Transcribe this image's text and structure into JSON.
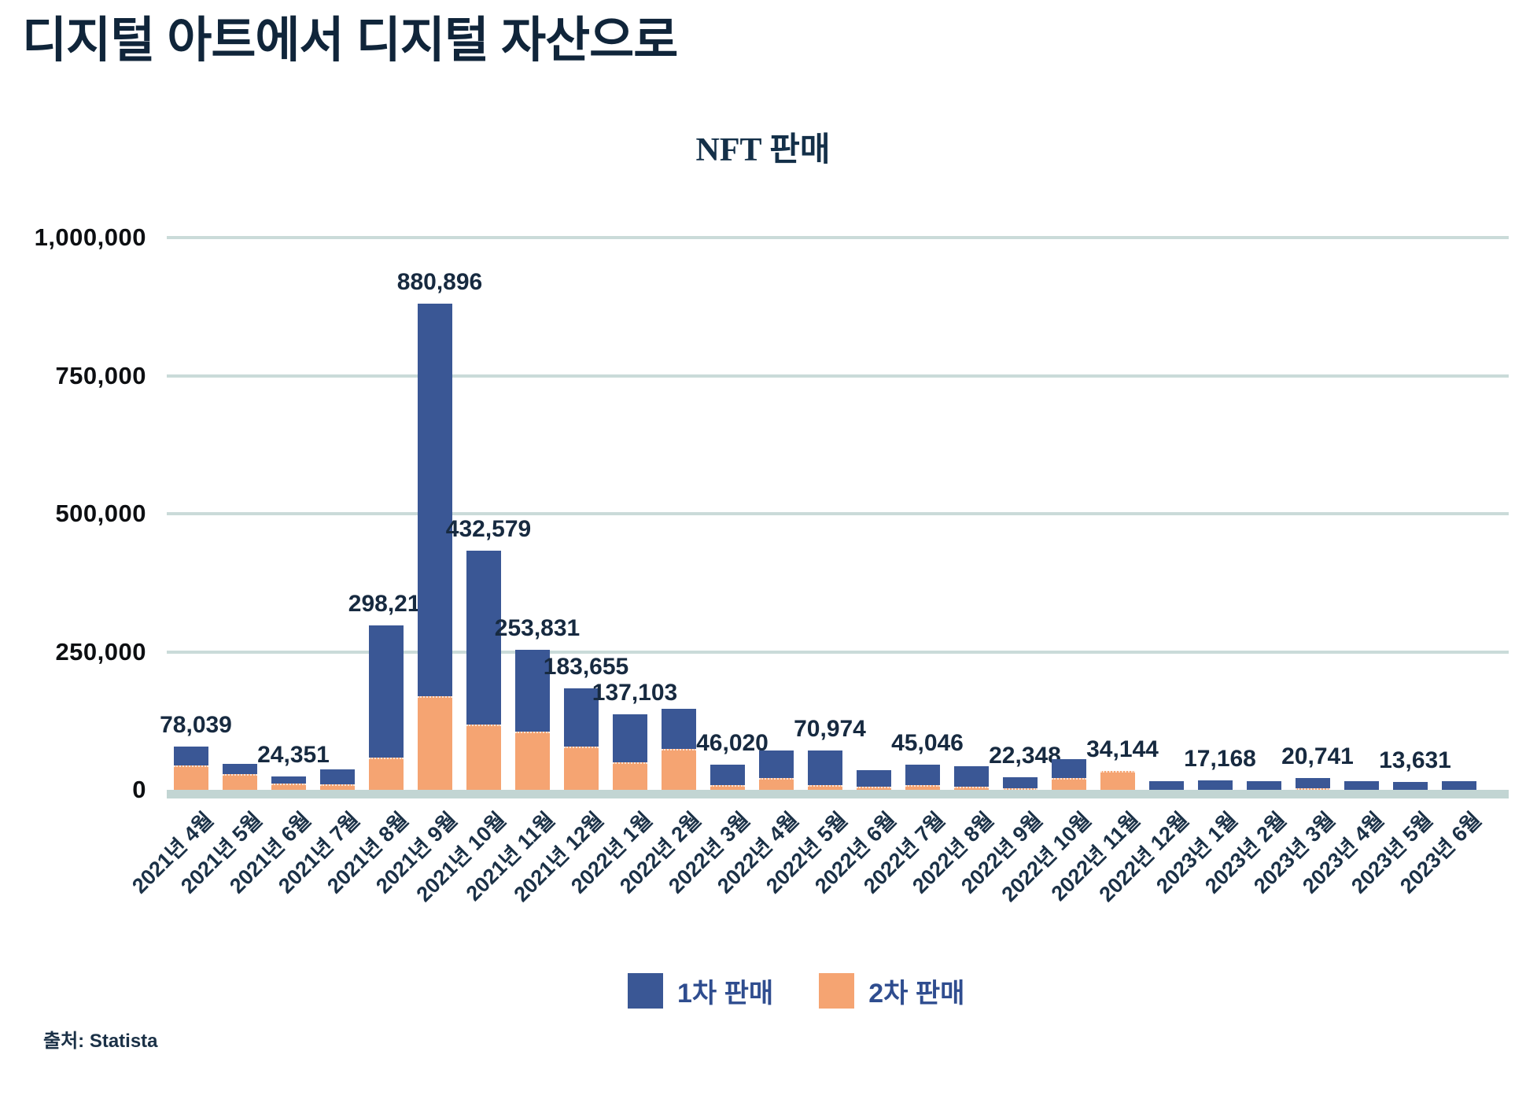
{
  "page_title": "디지털 아트에서 디지털 자산으로",
  "source": "출처: Statista",
  "colors": {
    "primary_blue": "#3A5795",
    "secondary_orange": "#F5A472",
    "gridline": "#CADBD9",
    "zero_band": "#C2D5D3",
    "value_label": "#172A40",
    "axis_label": "#1B3147",
    "legend_text": "#2F4D8F",
    "title_text": "#10253A"
  },
  "chart_data": {
    "type": "bar",
    "stacked": true,
    "title": "NFT 판매",
    "grid": true,
    "legend_position": "bottom",
    "ylim": [
      0,
      1000000
    ],
    "y_ticks": [
      "1,000,000",
      "750,000",
      "500,000",
      "250,000",
      "0"
    ],
    "categories": [
      "2021년 4월",
      "2021년 5월",
      "2021년 6월",
      "2021년 7월",
      "2021년 8월",
      "2021년 9월",
      "2021년 10월",
      "2021년 11월",
      "2021년 12월",
      "2022년 1월",
      "2022년 2월",
      "2022년 3월",
      "2022년 4월",
      "2022년 5월",
      "2022년 6월",
      "2022년 7월",
      "2022년 8월",
      "2022년 9월",
      "2022년 10월",
      "2022년 11월",
      "2022년 12월",
      "2023년 1월",
      "2023년 2월",
      "2023년 3월",
      "2023년 4월",
      "2023년 5월",
      "2023년 6월"
    ],
    "series": [
      {
        "name": "1차 판매",
        "color": "#3A5795",
        "values": [
          34039,
          18000,
          12851,
          27500,
          240210,
          710896,
          314579,
          148831,
          105655,
          87103,
          73000,
          38020,
          49000,
          62974,
          31000,
          36046,
          38000,
          19848,
          33000,
          0,
          15000,
          17168,
          15000,
          18241,
          16000,
          13631,
          16000
        ]
      },
      {
        "name": "2차 판매",
        "color": "#F5A472",
        "values": [
          44000,
          29000,
          11500,
          9500,
          58000,
          170000,
          118000,
          105000,
          78000,
          50000,
          74000,
          8000,
          22000,
          8000,
          5000,
          9000,
          5000,
          2500,
          22000,
          34144,
          0,
          0,
          0,
          2500,
          0,
          0,
          0
        ]
      }
    ],
    "totals": [
      78039,
      47000,
      24351,
      37000,
      298210,
      880896,
      432579,
      253831,
      183655,
      137103,
      147000,
      46020,
      71000,
      70974,
      36000,
      45046,
      43000,
      22348,
      55000,
      34144,
      15000,
      17168,
      15000,
      20741,
      16000,
      13631,
      16000
    ],
    "data_labels": [
      "78,039",
      null,
      "24,351",
      null,
      "298,210",
      "880,896",
      "432,579",
      "253,831",
      "183,655",
      "137,103",
      null,
      "46,020",
      null,
      "70,974",
      null,
      "45,046",
      null,
      "22,348",
      null,
      "34,144",
      null,
      "17,168",
      null,
      "20,741",
      null,
      "13,631",
      null
    ]
  }
}
